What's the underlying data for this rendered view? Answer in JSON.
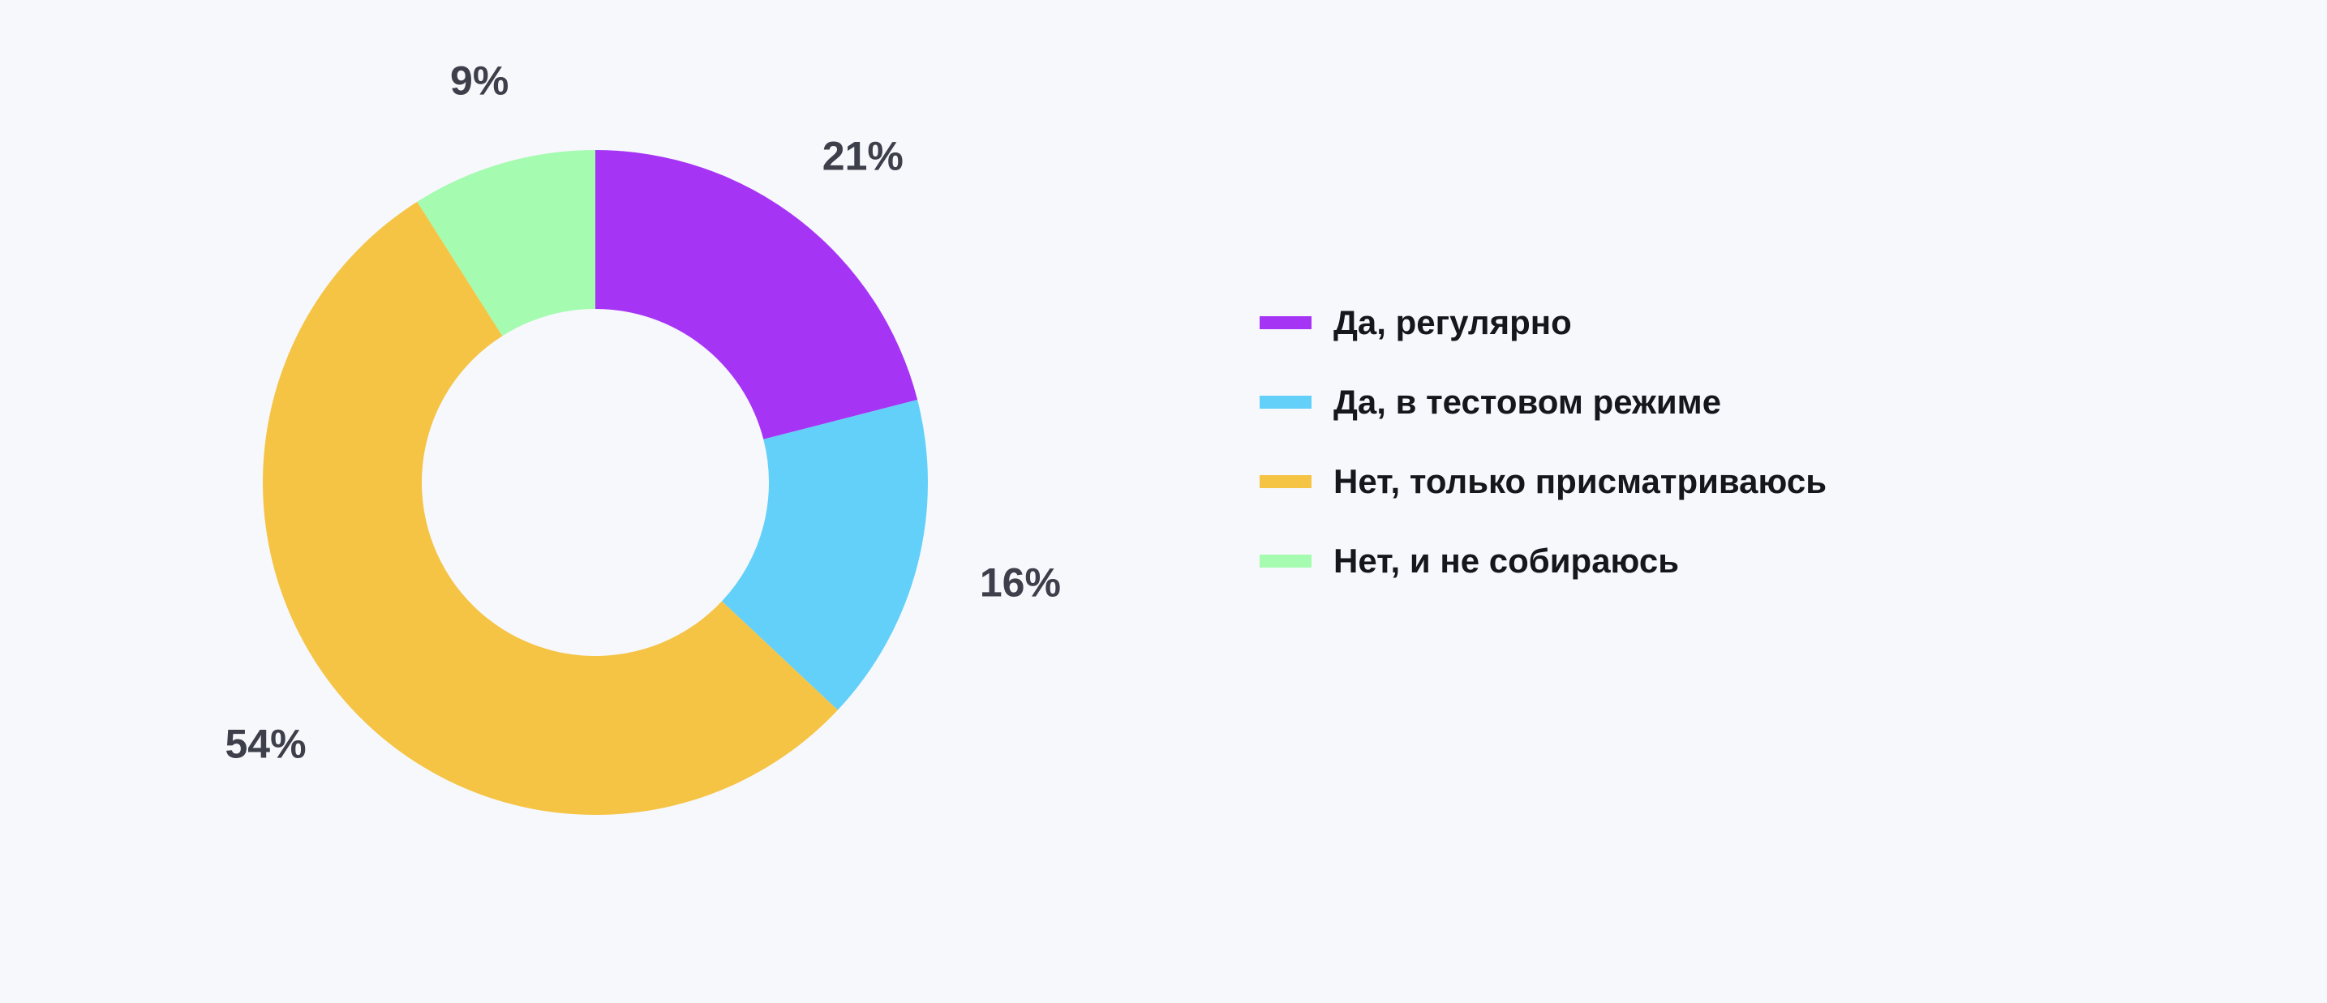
{
  "chart_data": {
    "type": "pie",
    "variant": "donut",
    "start_angle_deg": 0,
    "direction": "clockwise",
    "categories": [
      "Да, регулярно",
      "Да, в тестовом режиме",
      "Нет, только присматриваюсь",
      "Нет, и не собираюсь"
    ],
    "values": [
      21,
      16,
      54,
      9
    ],
    "labels": [
      "21%",
      "16%",
      "54%",
      "9%"
    ],
    "colors": [
      "#a634f5",
      "#62d0f9",
      "#f5c445",
      "#a5fbb0"
    ],
    "legend_position": "right",
    "title": "",
    "background": "#f7f8fc"
  }
}
